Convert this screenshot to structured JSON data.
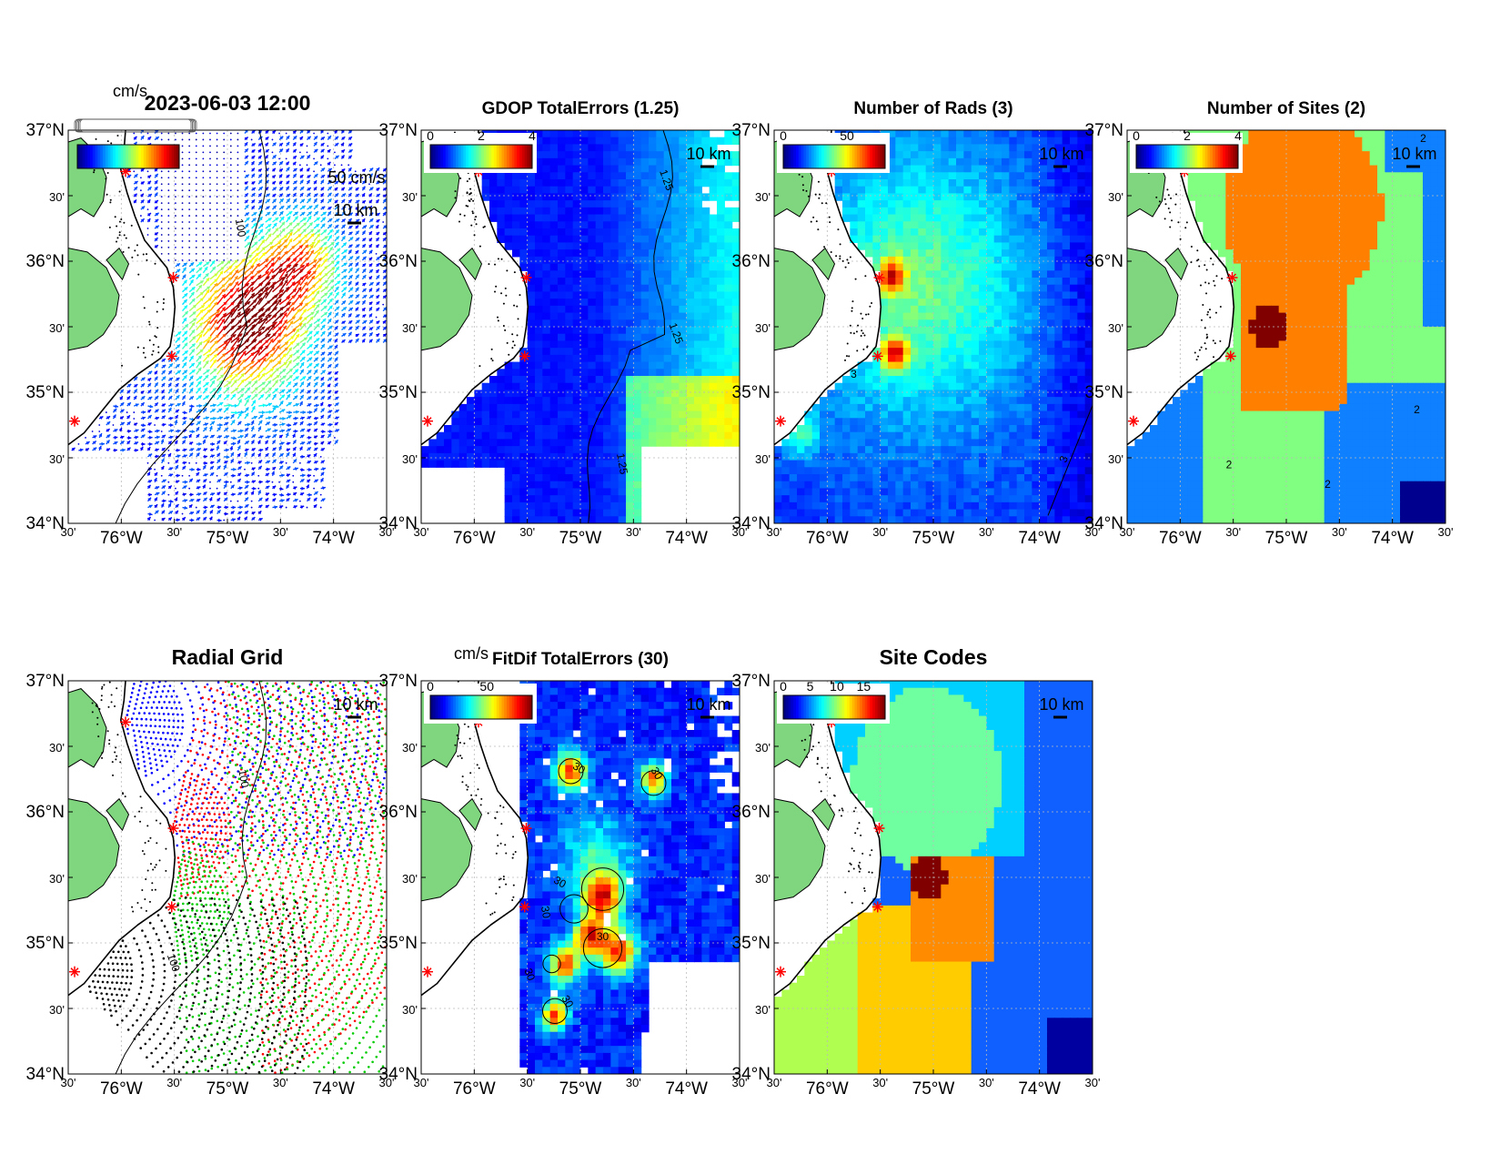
{
  "figure": {
    "timestamp": "2023-06-03 12:00",
    "lat_labels": [
      "37°N",
      "30'",
      "36°N",
      "30'",
      "35°N",
      "30'",
      "34°N"
    ],
    "lon_labels": [
      "30'",
      "76°W",
      "30'",
      "75°W",
      "30'",
      "74°W",
      "30'"
    ],
    "scale_label": "10 km",
    "colors": {
      "land": "#7fd67f",
      "coast": "#000000",
      "site_marker": "#ff0000",
      "grid": "#bbbbbb"
    }
  },
  "panels": [
    {
      "key": "vectors",
      "title": "",
      "unit_label": "cm/s",
      "colorbar_ticks": [],
      "ref_vector_label": "50 cm/s",
      "contour_labels": [
        "100"
      ]
    },
    {
      "key": "gdop",
      "title": "GDOP TotalErrors (1.25)",
      "unit_label": "",
      "colorbar_ticks": [
        "0",
        "2",
        "4"
      ],
      "contour_labels": [
        "1.25",
        "1.25",
        "1.25"
      ]
    },
    {
      "key": "rads",
      "title": "Number of Rads (3)",
      "unit_label": "",
      "colorbar_ticks": [
        "0",
        "50"
      ],
      "contour_labels": [
        "3",
        "3"
      ]
    },
    {
      "key": "sites",
      "title": "Number of Sites (2)",
      "unit_label": "",
      "colorbar_ticks": [
        "0",
        "2",
        "4"
      ],
      "contour_labels": [
        "2",
        "2",
        "2",
        "2"
      ]
    },
    {
      "key": "radial",
      "title": "Radial Grid",
      "unit_label": "",
      "colorbar_ticks": [],
      "contour_labels": [
        "100",
        "100"
      ]
    },
    {
      "key": "fitdif",
      "title": "FitDif TotalErrors (30)",
      "unit_label": "cm/s",
      "colorbar_ticks": [
        "0",
        "50"
      ],
      "contour_labels": [
        "30",
        "30",
        "30",
        "30",
        "30",
        "30",
        "30"
      ]
    },
    {
      "key": "codes",
      "title": "Site Codes",
      "unit_label": "",
      "colorbar_ticks": [
        "0",
        "5",
        "10",
        "15"
      ],
      "contour_labels": []
    }
  ]
}
